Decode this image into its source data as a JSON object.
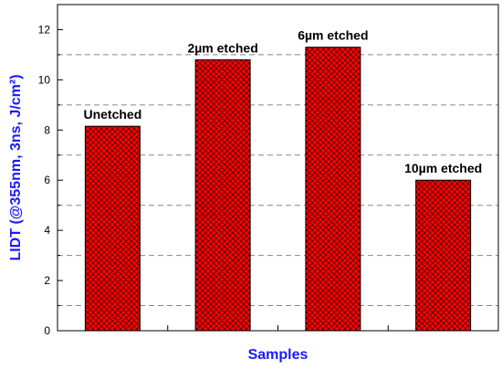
{
  "chart_data": {
    "type": "bar",
    "title": "",
    "xlabel": "Samples",
    "ylabel": "LIDT (@355nm, 3ns, J/cm²)",
    "categories": [
      "Unetched",
      "2µm etched",
      "6µm etched",
      "10µm etched"
    ],
    "values": [
      8.15,
      10.8,
      11.3,
      6.0
    ],
    "ylim": [
      0,
      13
    ],
    "yticks": [
      0,
      2,
      4,
      6,
      8,
      10,
      12
    ],
    "grid": {
      "y": true,
      "style": "dashed",
      "positions": [
        1,
        3,
        5,
        7,
        9,
        11
      ]
    },
    "legend": "none",
    "colors": {
      "bar_fill": "#ff0000",
      "bar_hatch": "#000000",
      "bar_border": "#000000",
      "axis_title": "#1a1aff",
      "grid": "#888888",
      "frame": "#000000"
    }
  }
}
